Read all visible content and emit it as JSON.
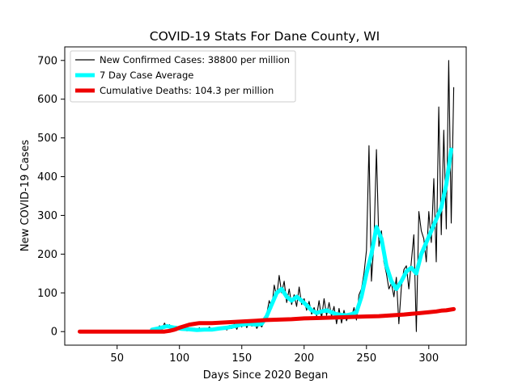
{
  "chart_data": {
    "type": "line",
    "title": "COVID-19 Stats For Dane County, WI",
    "xlabel": "Days Since 2020 Began",
    "ylabel": "New COVID-19 Cases",
    "xlim": [
      8,
      330
    ],
    "ylim": [
      -35,
      735
    ],
    "xticks": [
      50,
      100,
      150,
      200,
      250,
      300
    ],
    "yticks": [
      0,
      100,
      200,
      300,
      400,
      500,
      600,
      700
    ],
    "grid": false,
    "legend_position": "top-left",
    "series": [
      {
        "name": "New Confirmed Cases: 38800 per million",
        "color": "#000000",
        "points": [
          [
            78,
            2
          ],
          [
            80,
            8
          ],
          [
            82,
            4
          ],
          [
            84,
            15
          ],
          [
            86,
            5
          ],
          [
            88,
            22
          ],
          [
            90,
            10
          ],
          [
            92,
            18
          ],
          [
            94,
            6
          ],
          [
            96,
            14
          ],
          [
            98,
            3
          ],
          [
            100,
            10
          ],
          [
            102,
            5
          ],
          [
            104,
            12
          ],
          [
            106,
            2
          ],
          [
            108,
            8
          ],
          [
            110,
            3
          ],
          [
            112,
            9
          ],
          [
            114,
            4
          ],
          [
            116,
            10
          ],
          [
            118,
            2
          ],
          [
            120,
            7
          ],
          [
            122,
            5
          ],
          [
            124,
            12
          ],
          [
            126,
            3
          ],
          [
            128,
            8
          ],
          [
            130,
            4
          ],
          [
            132,
            10
          ],
          [
            134,
            6
          ],
          [
            136,
            12
          ],
          [
            138,
            4
          ],
          [
            140,
            16
          ],
          [
            142,
            8
          ],
          [
            144,
            20
          ],
          [
            146,
            6
          ],
          [
            148,
            22
          ],
          [
            150,
            12
          ],
          [
            152,
            28
          ],
          [
            154,
            10
          ],
          [
            156,
            24
          ],
          [
            158,
            14
          ],
          [
            160,
            30
          ],
          [
            162,
            8
          ],
          [
            164,
            20
          ],
          [
            166,
            12
          ],
          [
            168,
            26
          ],
          [
            170,
            45
          ],
          [
            172,
            80
          ],
          [
            174,
            60
          ],
          [
            176,
            120
          ],
          [
            178,
            90
          ],
          [
            180,
            145
          ],
          [
            182,
            100
          ],
          [
            184,
            130
          ],
          [
            186,
            75
          ],
          [
            188,
            110
          ],
          [
            190,
            70
          ],
          [
            192,
            95
          ],
          [
            194,
            65
          ],
          [
            196,
            115
          ],
          [
            198,
            70
          ],
          [
            200,
            85
          ],
          [
            202,
            55
          ],
          [
            204,
            78
          ],
          [
            206,
            45
          ],
          [
            208,
            62
          ],
          [
            210,
            40
          ],
          [
            212,
            80
          ],
          [
            214,
            35
          ],
          [
            216,
            85
          ],
          [
            218,
            42
          ],
          [
            220,
            75
          ],
          [
            222,
            40
          ],
          [
            224,
            65
          ],
          [
            226,
            20
          ],
          [
            228,
            60
          ],
          [
            230,
            22
          ],
          [
            232,
            55
          ],
          [
            234,
            28
          ],
          [
            236,
            45
          ],
          [
            238,
            38
          ],
          [
            240,
            62
          ],
          [
            242,
            30
          ],
          [
            244,
            95
          ],
          [
            246,
            110
          ],
          [
            248,
            150
          ],
          [
            250,
            210
          ],
          [
            252,
            480
          ],
          [
            254,
            130
          ],
          [
            256,
            230
          ],
          [
            258,
            470
          ],
          [
            260,
            220
          ],
          [
            262,
            260
          ],
          [
            264,
            180
          ],
          [
            266,
            150
          ],
          [
            268,
            110
          ],
          [
            270,
            125
          ],
          [
            272,
            90
          ],
          [
            274,
            140
          ],
          [
            276,
            20
          ],
          [
            278,
            115
          ],
          [
            280,
            160
          ],
          [
            282,
            170
          ],
          [
            284,
            110
          ],
          [
            286,
            180
          ],
          [
            288,
            250
          ],
          [
            290,
            0
          ],
          [
            292,
            310
          ],
          [
            294,
            260
          ],
          [
            296,
            240
          ],
          [
            298,
            180
          ],
          [
            300,
            310
          ],
          [
            302,
            230
          ],
          [
            304,
            395
          ],
          [
            306,
            180
          ],
          [
            308,
            580
          ],
          [
            310,
            250
          ],
          [
            312,
            520
          ],
          [
            314,
            265
          ],
          [
            316,
            700
          ],
          [
            318,
            280
          ],
          [
            320,
            630
          ]
        ]
      },
      {
        "name": "7 Day Case Average",
        "color": "#00ffff",
        "points": [
          [
            78,
            5
          ],
          [
            84,
            9
          ],
          [
            90,
            14
          ],
          [
            96,
            10
          ],
          [
            102,
            7
          ],
          [
            108,
            6
          ],
          [
            114,
            4
          ],
          [
            120,
            5
          ],
          [
            126,
            5
          ],
          [
            132,
            8
          ],
          [
            138,
            10
          ],
          [
            144,
            14
          ],
          [
            150,
            18
          ],
          [
            156,
            20
          ],
          [
            162,
            18
          ],
          [
            166,
            20
          ],
          [
            170,
            40
          ],
          [
            174,
            70
          ],
          [
            178,
            100
          ],
          [
            182,
            110
          ],
          [
            186,
            90
          ],
          [
            190,
            80
          ],
          [
            194,
            90
          ],
          [
            198,
            80
          ],
          [
            202,
            68
          ],
          [
            206,
            55
          ],
          [
            210,
            48
          ],
          [
            214,
            52
          ],
          [
            218,
            55
          ],
          [
            222,
            50
          ],
          [
            226,
            45
          ],
          [
            230,
            43
          ],
          [
            234,
            42
          ],
          [
            238,
            45
          ],
          [
            242,
            50
          ],
          [
            246,
            90
          ],
          [
            250,
            150
          ],
          [
            254,
            200
          ],
          [
            258,
            270
          ],
          [
            262,
            240
          ],
          [
            266,
            170
          ],
          [
            270,
            130
          ],
          [
            274,
            110
          ],
          [
            278,
            130
          ],
          [
            282,
            155
          ],
          [
            286,
            165
          ],
          [
            290,
            150
          ],
          [
            294,
            200
          ],
          [
            298,
            230
          ],
          [
            302,
            260
          ],
          [
            306,
            290
          ],
          [
            310,
            320
          ],
          [
            314,
            380
          ],
          [
            318,
            470
          ]
        ]
      },
      {
        "name": "Cumulative Deaths: 104.3 per million",
        "color": "#ee0000",
        "points": [
          [
            20,
            0
          ],
          [
            30,
            0
          ],
          [
            40,
            0
          ],
          [
            50,
            0
          ],
          [
            60,
            0
          ],
          [
            70,
            0
          ],
          [
            80,
            0
          ],
          [
            88,
            0
          ],
          [
            92,
            2
          ],
          [
            96,
            5
          ],
          [
            100,
            10
          ],
          [
            104,
            14
          ],
          [
            108,
            18
          ],
          [
            112,
            20
          ],
          [
            116,
            22
          ],
          [
            120,
            22
          ],
          [
            126,
            22
          ],
          [
            132,
            23
          ],
          [
            138,
            24
          ],
          [
            144,
            25
          ],
          [
            150,
            26
          ],
          [
            156,
            27
          ],
          [
            162,
            28
          ],
          [
            170,
            30
          ],
          [
            180,
            31
          ],
          [
            190,
            32
          ],
          [
            200,
            34
          ],
          [
            210,
            35
          ],
          [
            220,
            36
          ],
          [
            230,
            37
          ],
          [
            240,
            38
          ],
          [
            250,
            39
          ],
          [
            260,
            40
          ],
          [
            270,
            42
          ],
          [
            280,
            44
          ],
          [
            290,
            47
          ],
          [
            300,
            50
          ],
          [
            306,
            52
          ],
          [
            310,
            54
          ],
          [
            314,
            55
          ],
          [
            318,
            57
          ],
          [
            320,
            58
          ]
        ]
      }
    ]
  }
}
